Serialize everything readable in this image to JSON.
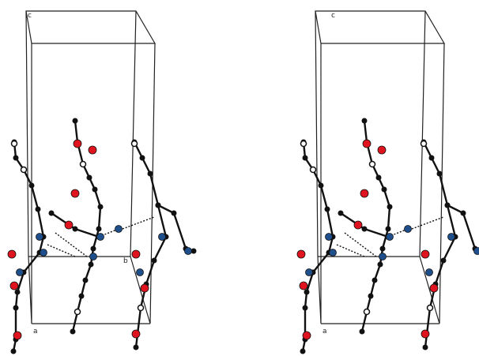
{
  "panels": [
    {
      "axis_labels": [
        "c",
        "b",
        "a"
      ]
    },
    {
      "axis_labels": [
        "c",
        "a"
      ]
    }
  ]
}
